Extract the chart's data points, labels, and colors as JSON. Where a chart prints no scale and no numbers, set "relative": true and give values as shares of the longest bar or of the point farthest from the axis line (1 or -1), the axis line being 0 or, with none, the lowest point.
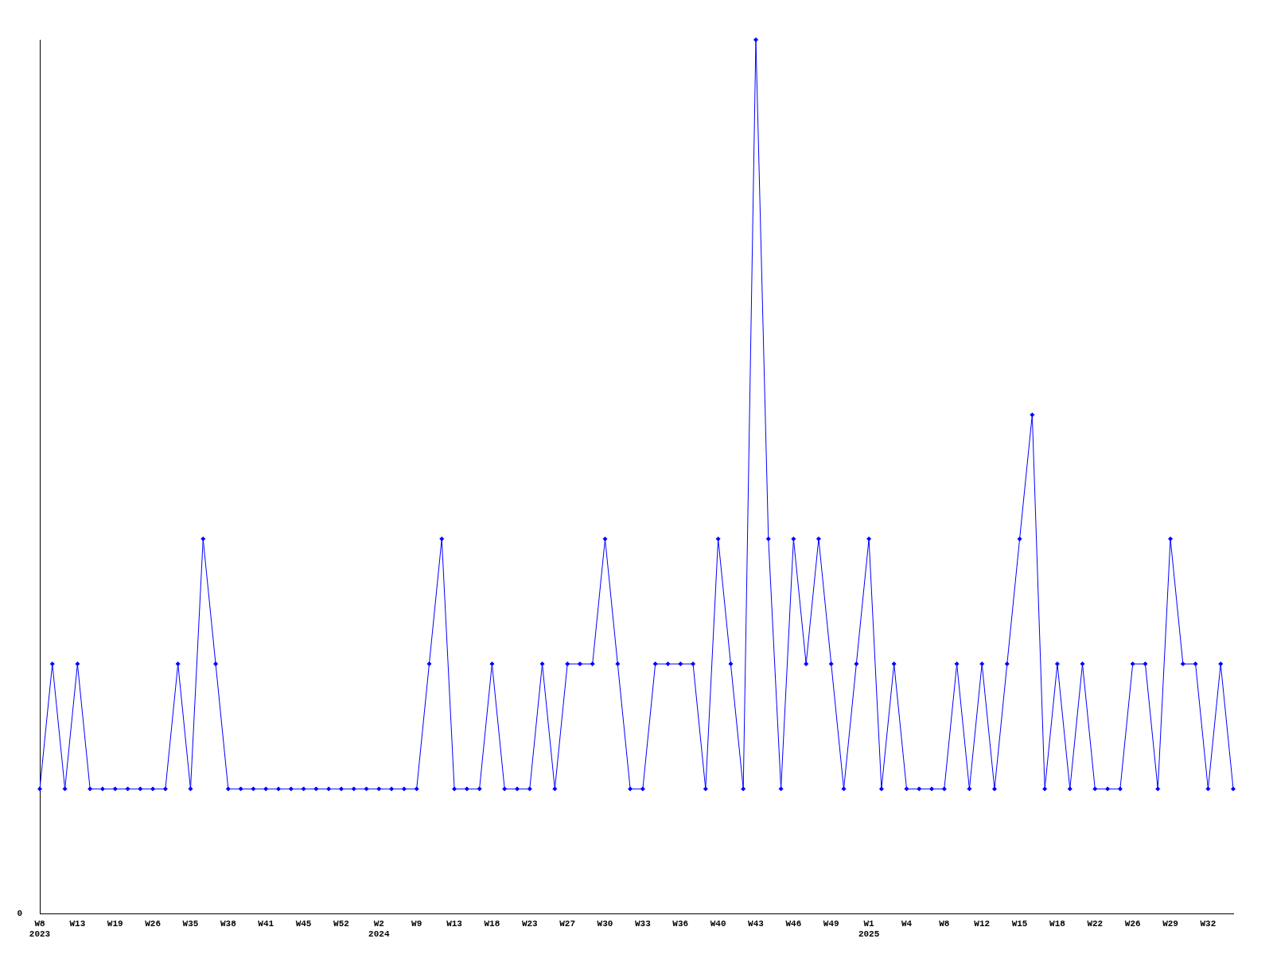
{
  "chart_data": {
    "type": "line",
    "relative": true,
    "marker": "diamond",
    "line_style": "solid",
    "legend": false,
    "grid": false,
    "categories": [
      "W8\n2023",
      null,
      null,
      "W13",
      null,
      null,
      "W19",
      null,
      null,
      "W26",
      null,
      null,
      "W35",
      null,
      null,
      "W38",
      null,
      null,
      "W41",
      null,
      null,
      "W45",
      null,
      null,
      "W52",
      null,
      null,
      "W2\n2024",
      null,
      null,
      "W9",
      null,
      null,
      "W13",
      null,
      null,
      "W18",
      null,
      null,
      "W23",
      null,
      null,
      "W27",
      null,
      null,
      "W30",
      null,
      null,
      "W33",
      null,
      null,
      "W36",
      null,
      null,
      "W40",
      null,
      null,
      "W43",
      null,
      null,
      "W46",
      null,
      null,
      "W49",
      null,
      null,
      "W1\n2025",
      null,
      null,
      "W4",
      null,
      null,
      "W8",
      null,
      null,
      "W12",
      null,
      null,
      "W15",
      null,
      null,
      "W18",
      null,
      null,
      "W22",
      null,
      null,
      "W26",
      null,
      null,
      "W29",
      null,
      null,
      "W32",
      null,
      null
    ],
    "series": [
      {
        "color": "#0000ff",
        "values": [
          0.143,
          0.286,
          0.143,
          0.286,
          0.143,
          0.143,
          0.143,
          0.143,
          0.143,
          0.143,
          0.143,
          0.286,
          0.143,
          0.429,
          0.286,
          0.143,
          0.143,
          0.143,
          0.143,
          0.143,
          0.143,
          0.143,
          0.143,
          0.143,
          0.143,
          0.143,
          0.143,
          0.143,
          0.143,
          0.143,
          0.143,
          0.286,
          0.429,
          0.143,
          0.143,
          0.143,
          0.286,
          0.143,
          0.143,
          0.143,
          0.286,
          0.143,
          0.286,
          0.286,
          0.286,
          0.429,
          0.286,
          0.143,
          0.143,
          0.286,
          0.286,
          0.286,
          0.286,
          0.143,
          0.429,
          0.286,
          0.143,
          1,
          0.429,
          0.143,
          0.429,
          0.286,
          0.429,
          0.286,
          0.143,
          0.286,
          0.429,
          0.143,
          0.286,
          0.143,
          0.143,
          0.143,
          0.143,
          0.286,
          0.143,
          0.286,
          0.143,
          0.286,
          0.429,
          0.571,
          0.143,
          0.286,
          0.143,
          0.286,
          0.143,
          0.143,
          0.143,
          0.286,
          0.286,
          0.143,
          0.429,
          0.286,
          0.286,
          0.143,
          0.286,
          0.143
        ]
      }
    ],
    "annotations": [
      "0"
    ]
  }
}
